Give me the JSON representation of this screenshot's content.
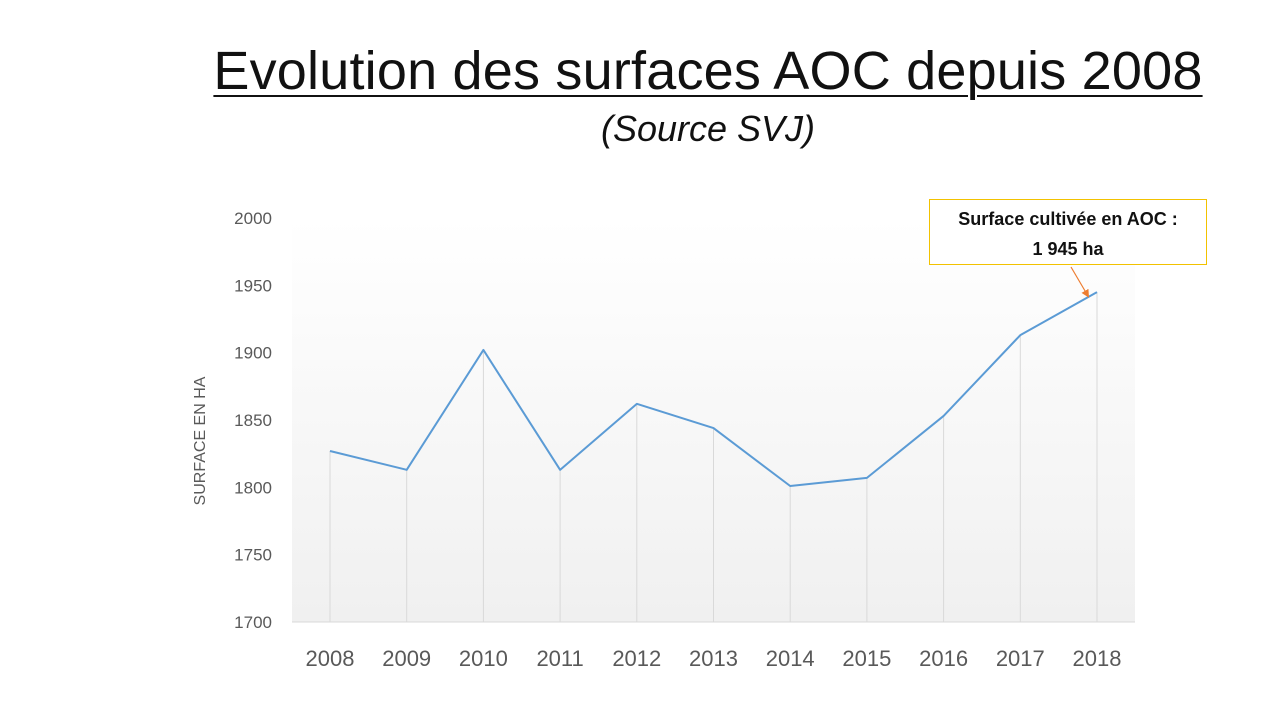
{
  "title": "Evolution des surfaces AOC depuis 2008",
  "subtitle": "(Source SVJ)",
  "annotation": {
    "line1": "Surface cultivée en AOC :",
    "line2": "1 945 ha"
  },
  "colors": {
    "series_line": "#5b9bd5",
    "annotation_border": "#f2c200",
    "annotation_arrow": "#ed7d31",
    "drop_lines": "#d9d9d9",
    "axis_text": "#595959"
  },
  "chart_data": {
    "type": "line",
    "x": [
      "2008",
      "2009",
      "2010",
      "2011",
      "2012",
      "2013",
      "2014",
      "2015",
      "2016",
      "2017",
      "2018"
    ],
    "series": [
      {
        "values": [
          1827,
          1813,
          1902,
          1813,
          1862,
          1844,
          1801,
          1807,
          1853,
          1913,
          1945
        ]
      }
    ],
    "ylabel": "SURFACE EN HA",
    "xlabel": "",
    "ylim": [
      1700,
      2000
    ],
    "yticks": [
      "1700",
      "1750",
      "1800",
      "1850",
      "1900",
      "1950",
      "2000"
    ],
    "drop_lines": true,
    "grid": false,
    "legend": "none"
  }
}
